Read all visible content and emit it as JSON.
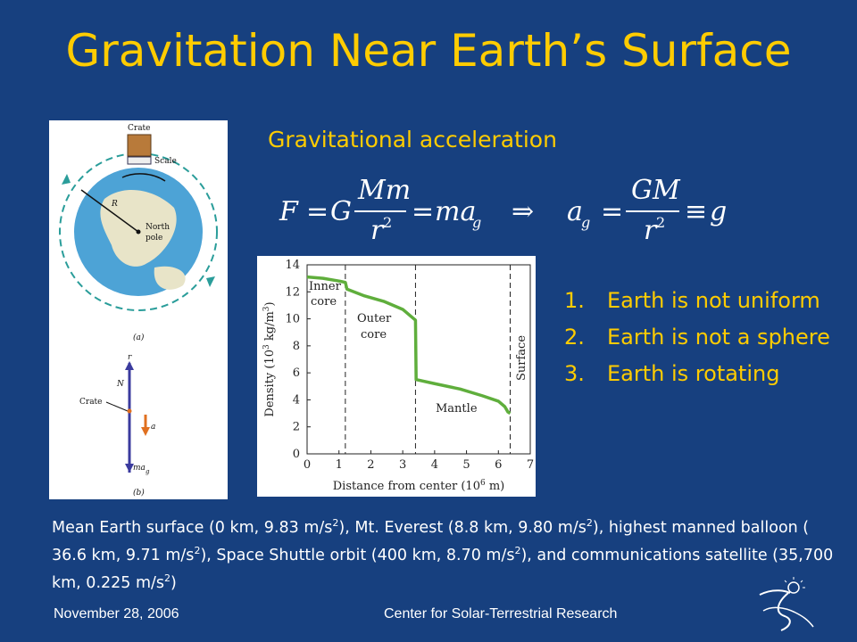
{
  "slide": {
    "title": "Gravitation Near Earth’s Surface",
    "subtitle": "Gravitational acceleration"
  },
  "equation": {
    "F": "F",
    "G": "G",
    "Mm": "Mm",
    "r2": "r",
    "sq": "2",
    "ma": "ma",
    "g_sub": "g",
    "implies": "⇒",
    "a": "a",
    "GM": "GM",
    "equiv": "≡",
    "g": "g",
    "eq": "="
  },
  "figure_left": {
    "crate": "Crate",
    "scale": "Scale",
    "R": "R",
    "north_pole_1": "North",
    "north_pole_2": "pole",
    "part_a": "(a)",
    "r": "r",
    "N": "N",
    "crate_b": "Crate",
    "a": "a",
    "mag": "ma",
    "mag_sub": "g",
    "part_b": "(b)"
  },
  "chart_data": {
    "type": "line",
    "xlabel": "Distance from center (10",
    "xlabel_exp": "6",
    "xlabel_unit": " m)",
    "ylabel": "Density (10",
    "ylabel_exp": "3",
    "ylabel_unit": " kg/m",
    "ylabel_exp2": "3",
    "ylabel_close": ")",
    "xlim": [
      0,
      7
    ],
    "ylim": [
      0,
      14
    ],
    "x_ticks": [
      "0",
      "1",
      "2",
      "3",
      "4",
      "5",
      "6",
      "7"
    ],
    "y_ticks": [
      "0",
      "2",
      "4",
      "6",
      "8",
      "10",
      "12",
      "14"
    ],
    "annotations": {
      "inner1": "Inner",
      "inner2": "core",
      "outer1": "Outer",
      "outer2": "core",
      "mantle": "Mantle",
      "surface": "Surface"
    },
    "boundaries": [
      1.2,
      3.4,
      6.37
    ],
    "series": [
      {
        "color": "#5fae3c",
        "points": [
          [
            0,
            13.1
          ],
          [
            0.5,
            13.0
          ],
          [
            1.0,
            12.8
          ],
          [
            1.2,
            12.7
          ],
          [
            1.25,
            12.2
          ],
          [
            1.8,
            11.7
          ],
          [
            2.4,
            11.3
          ],
          [
            3.0,
            10.7
          ],
          [
            3.3,
            10.1
          ],
          [
            3.4,
            9.9
          ],
          [
            3.42,
            5.5
          ],
          [
            4.0,
            5.2
          ],
          [
            4.8,
            4.8
          ],
          [
            5.5,
            4.3
          ],
          [
            6.0,
            3.9
          ],
          [
            6.2,
            3.5
          ],
          [
            6.3,
            3.1
          ],
          [
            6.37,
            3.0
          ]
        ]
      }
    ]
  },
  "list": [
    {
      "num": "1.",
      "text": "Earth is not uniform"
    },
    {
      "num": "2.",
      "text": "Earth is not a sphere"
    },
    {
      "num": "3.",
      "text": "Earth is rotating"
    }
  ],
  "caption": {
    "p1": "Mean Earth surface (0 km, 9.83 m/s",
    "p2": "), Mt. Everest (8.8 km, 9.80 m/s",
    "p3": "), highest manned balloon ( 36.6 km, 9.71 m/s",
    "p4": "), Space Shuttle orbit (400 km, 8.70 m/s",
    "p5": "), and communications satellite (35,700 km, 0.225 m/s",
    "p6": ")",
    "exp": "2"
  },
  "footer": {
    "date": "November 28, 2006",
    "org": "Center for Solar-Terrestrial Research"
  },
  "colors": {
    "background": "#17407f",
    "accent": "#ffcc00",
    "curve": "#5fae3c"
  }
}
